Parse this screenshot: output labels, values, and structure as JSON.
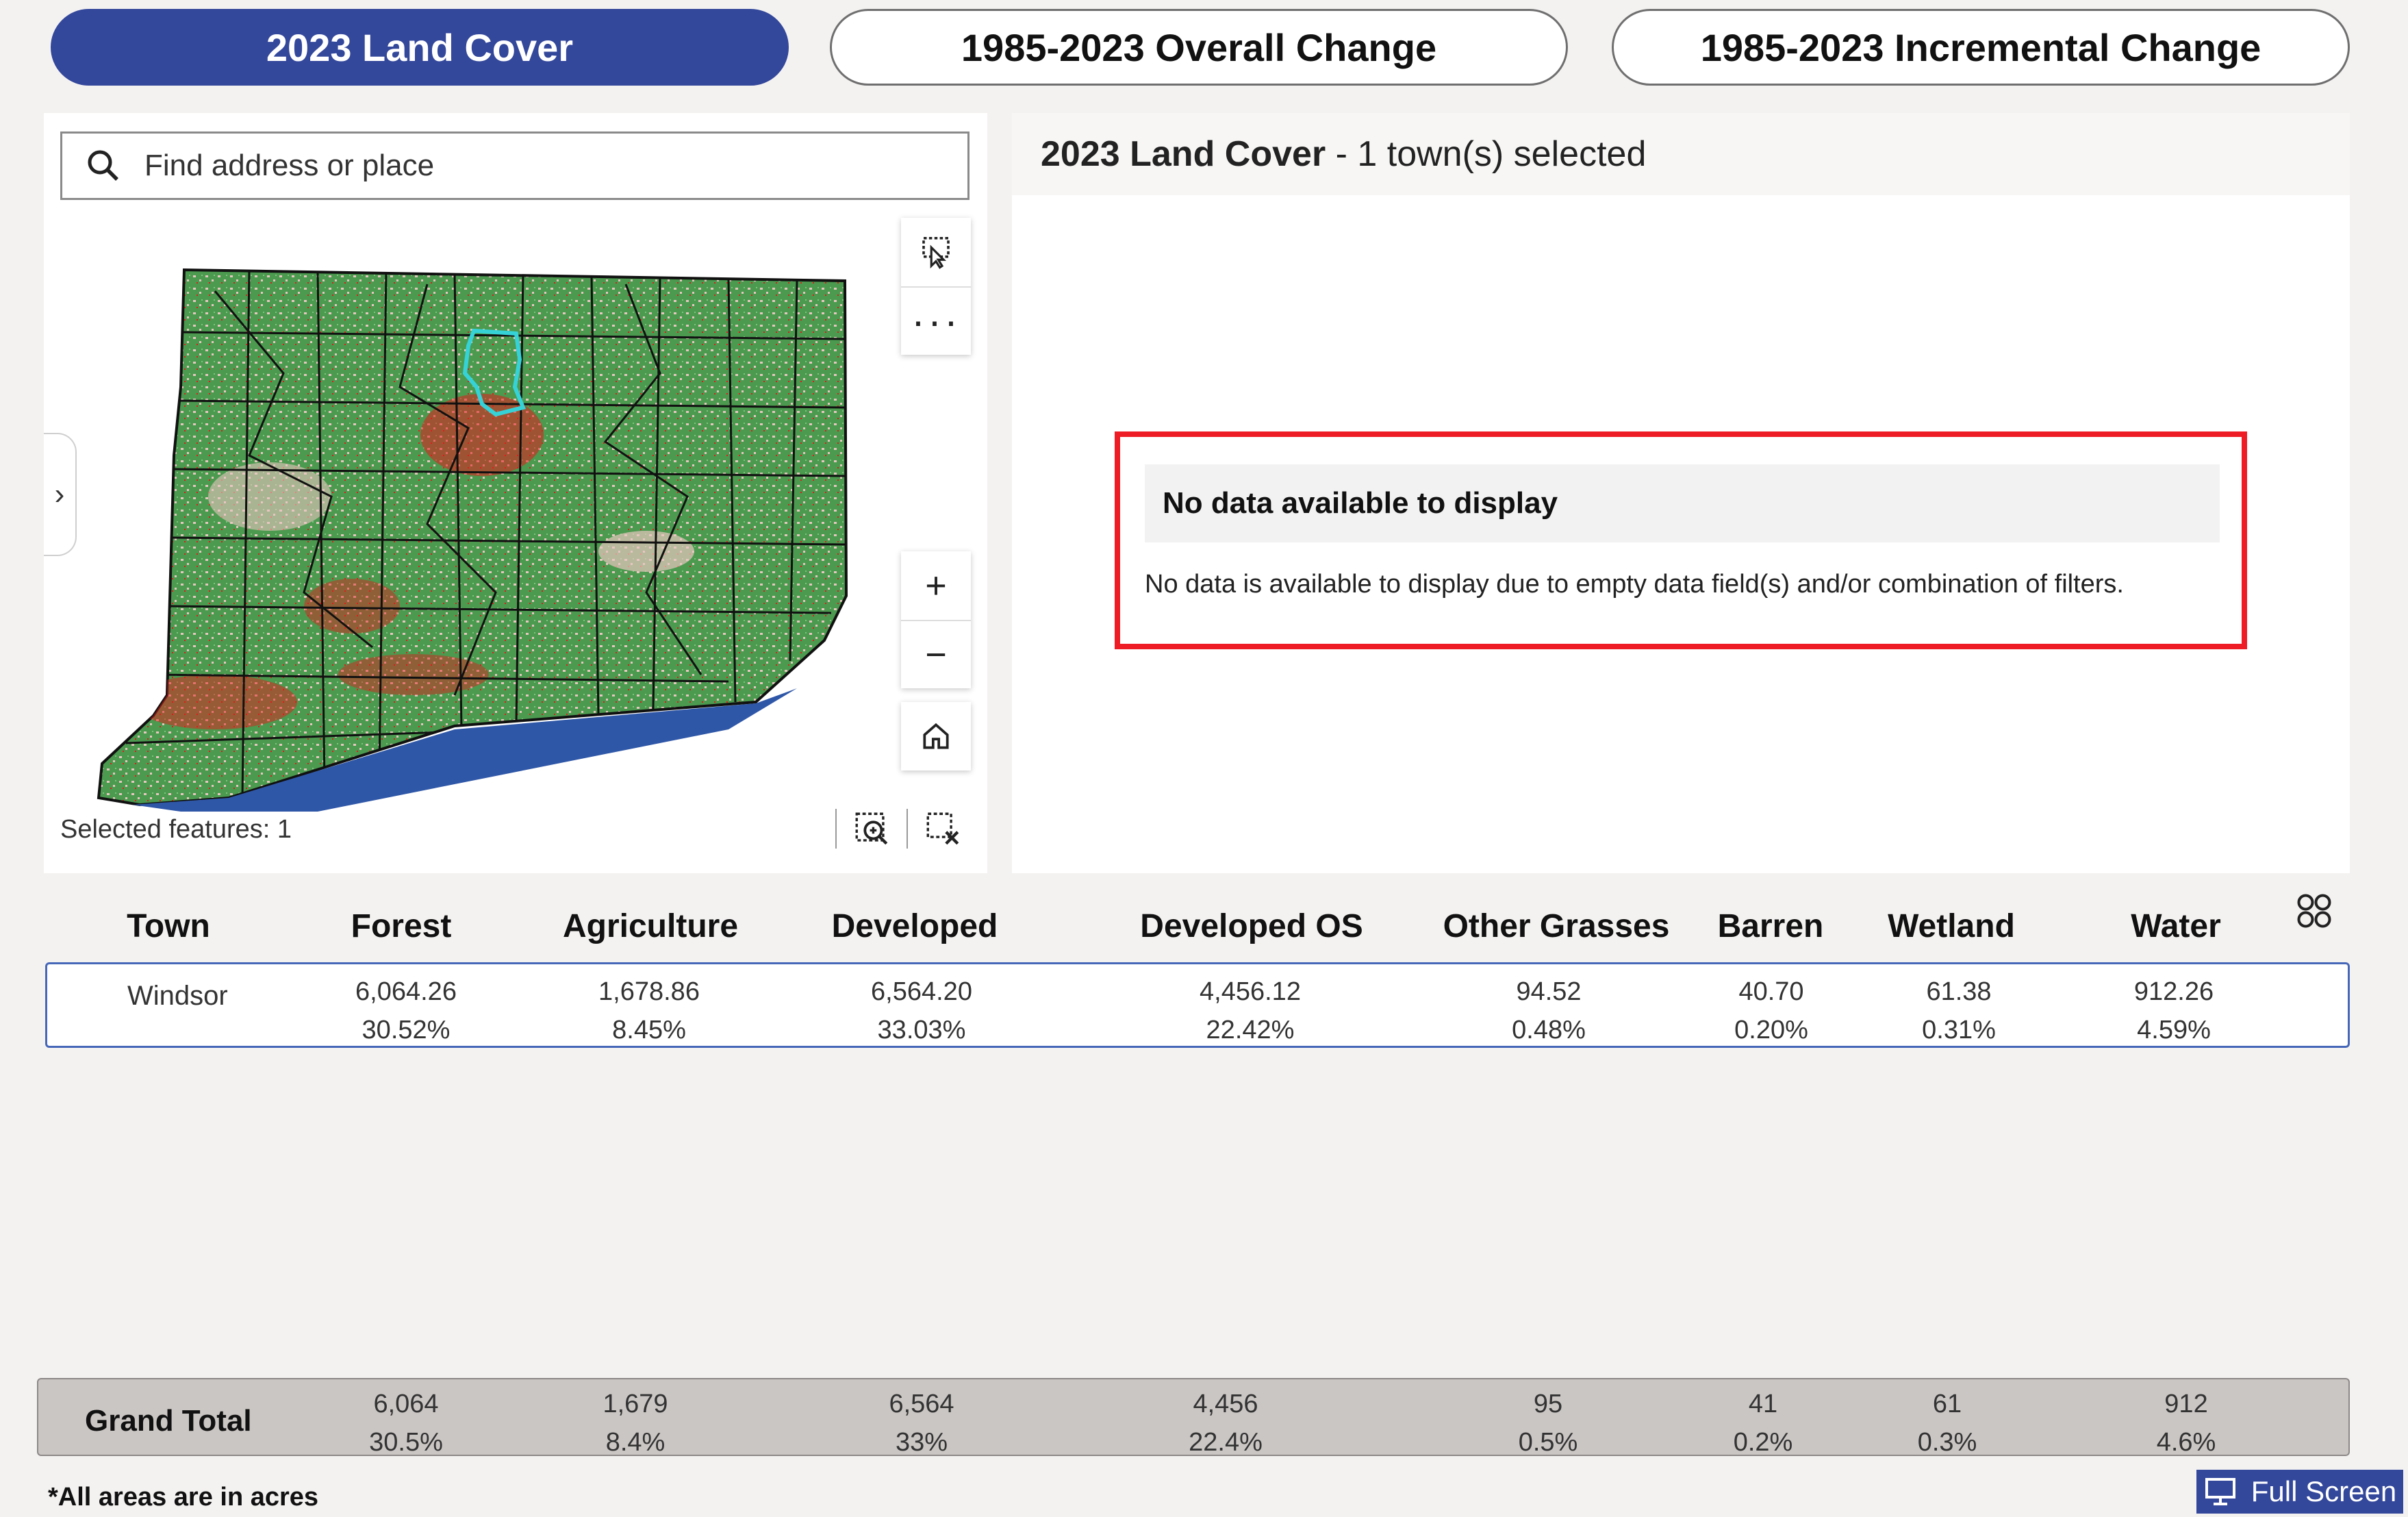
{
  "tabs": [
    {
      "label": "2023 Land Cover",
      "active": true
    },
    {
      "label": "1985-2023 Overall Change",
      "active": false
    },
    {
      "label": "1985-2023 Incremental Change",
      "active": false
    }
  ],
  "map": {
    "search_placeholder": "Find address or place",
    "selected_features": "Selected features: 1",
    "tools": [
      "select-icon",
      "more-icon",
      "zoom-in-icon",
      "zoom-out-icon",
      "home-icon"
    ],
    "colors": {
      "forest": "#4b9a4f",
      "developed": "#e31b1b",
      "grass": "#e8c6c0",
      "water": "#2f57a8",
      "selected": "#35d3d8"
    }
  },
  "chart": {
    "title_bold": "2023 Land Cover",
    "title_rest": " - 1 town(s) selected",
    "no_data_title": "No data available to display",
    "no_data_text": "No data is available to display due to empty data field(s) and/or combination of filters."
  },
  "table": {
    "headers": [
      "Town",
      "Forest",
      "Agriculture",
      "Developed",
      "Developed OS",
      "Other Grasses",
      "Barren",
      "Wetland",
      "Water"
    ],
    "rows": [
      {
        "town": "Windsor",
        "values": [
          "6,064.26",
          "1,678.86",
          "6,564.20",
          "4,456.12",
          "94.52",
          "40.70",
          "61.38",
          "912.26"
        ],
        "percents": [
          "30.52%",
          "8.45%",
          "33.03%",
          "22.42%",
          "0.48%",
          "0.20%",
          "0.31%",
          "4.59%"
        ]
      }
    ],
    "total": {
      "label": "Grand Total",
      "values": [
        "6,064",
        "1,679",
        "6,564",
        "4,456",
        "95",
        "41",
        "61",
        "912"
      ],
      "percents": [
        "30.5%",
        "8.4%",
        "33%",
        "22.4%",
        "0.5%",
        "0.2%",
        "0.3%",
        "4.6%"
      ]
    }
  },
  "footnote": "*All areas are in acres",
  "fullscreen_label": "Full Screen"
}
